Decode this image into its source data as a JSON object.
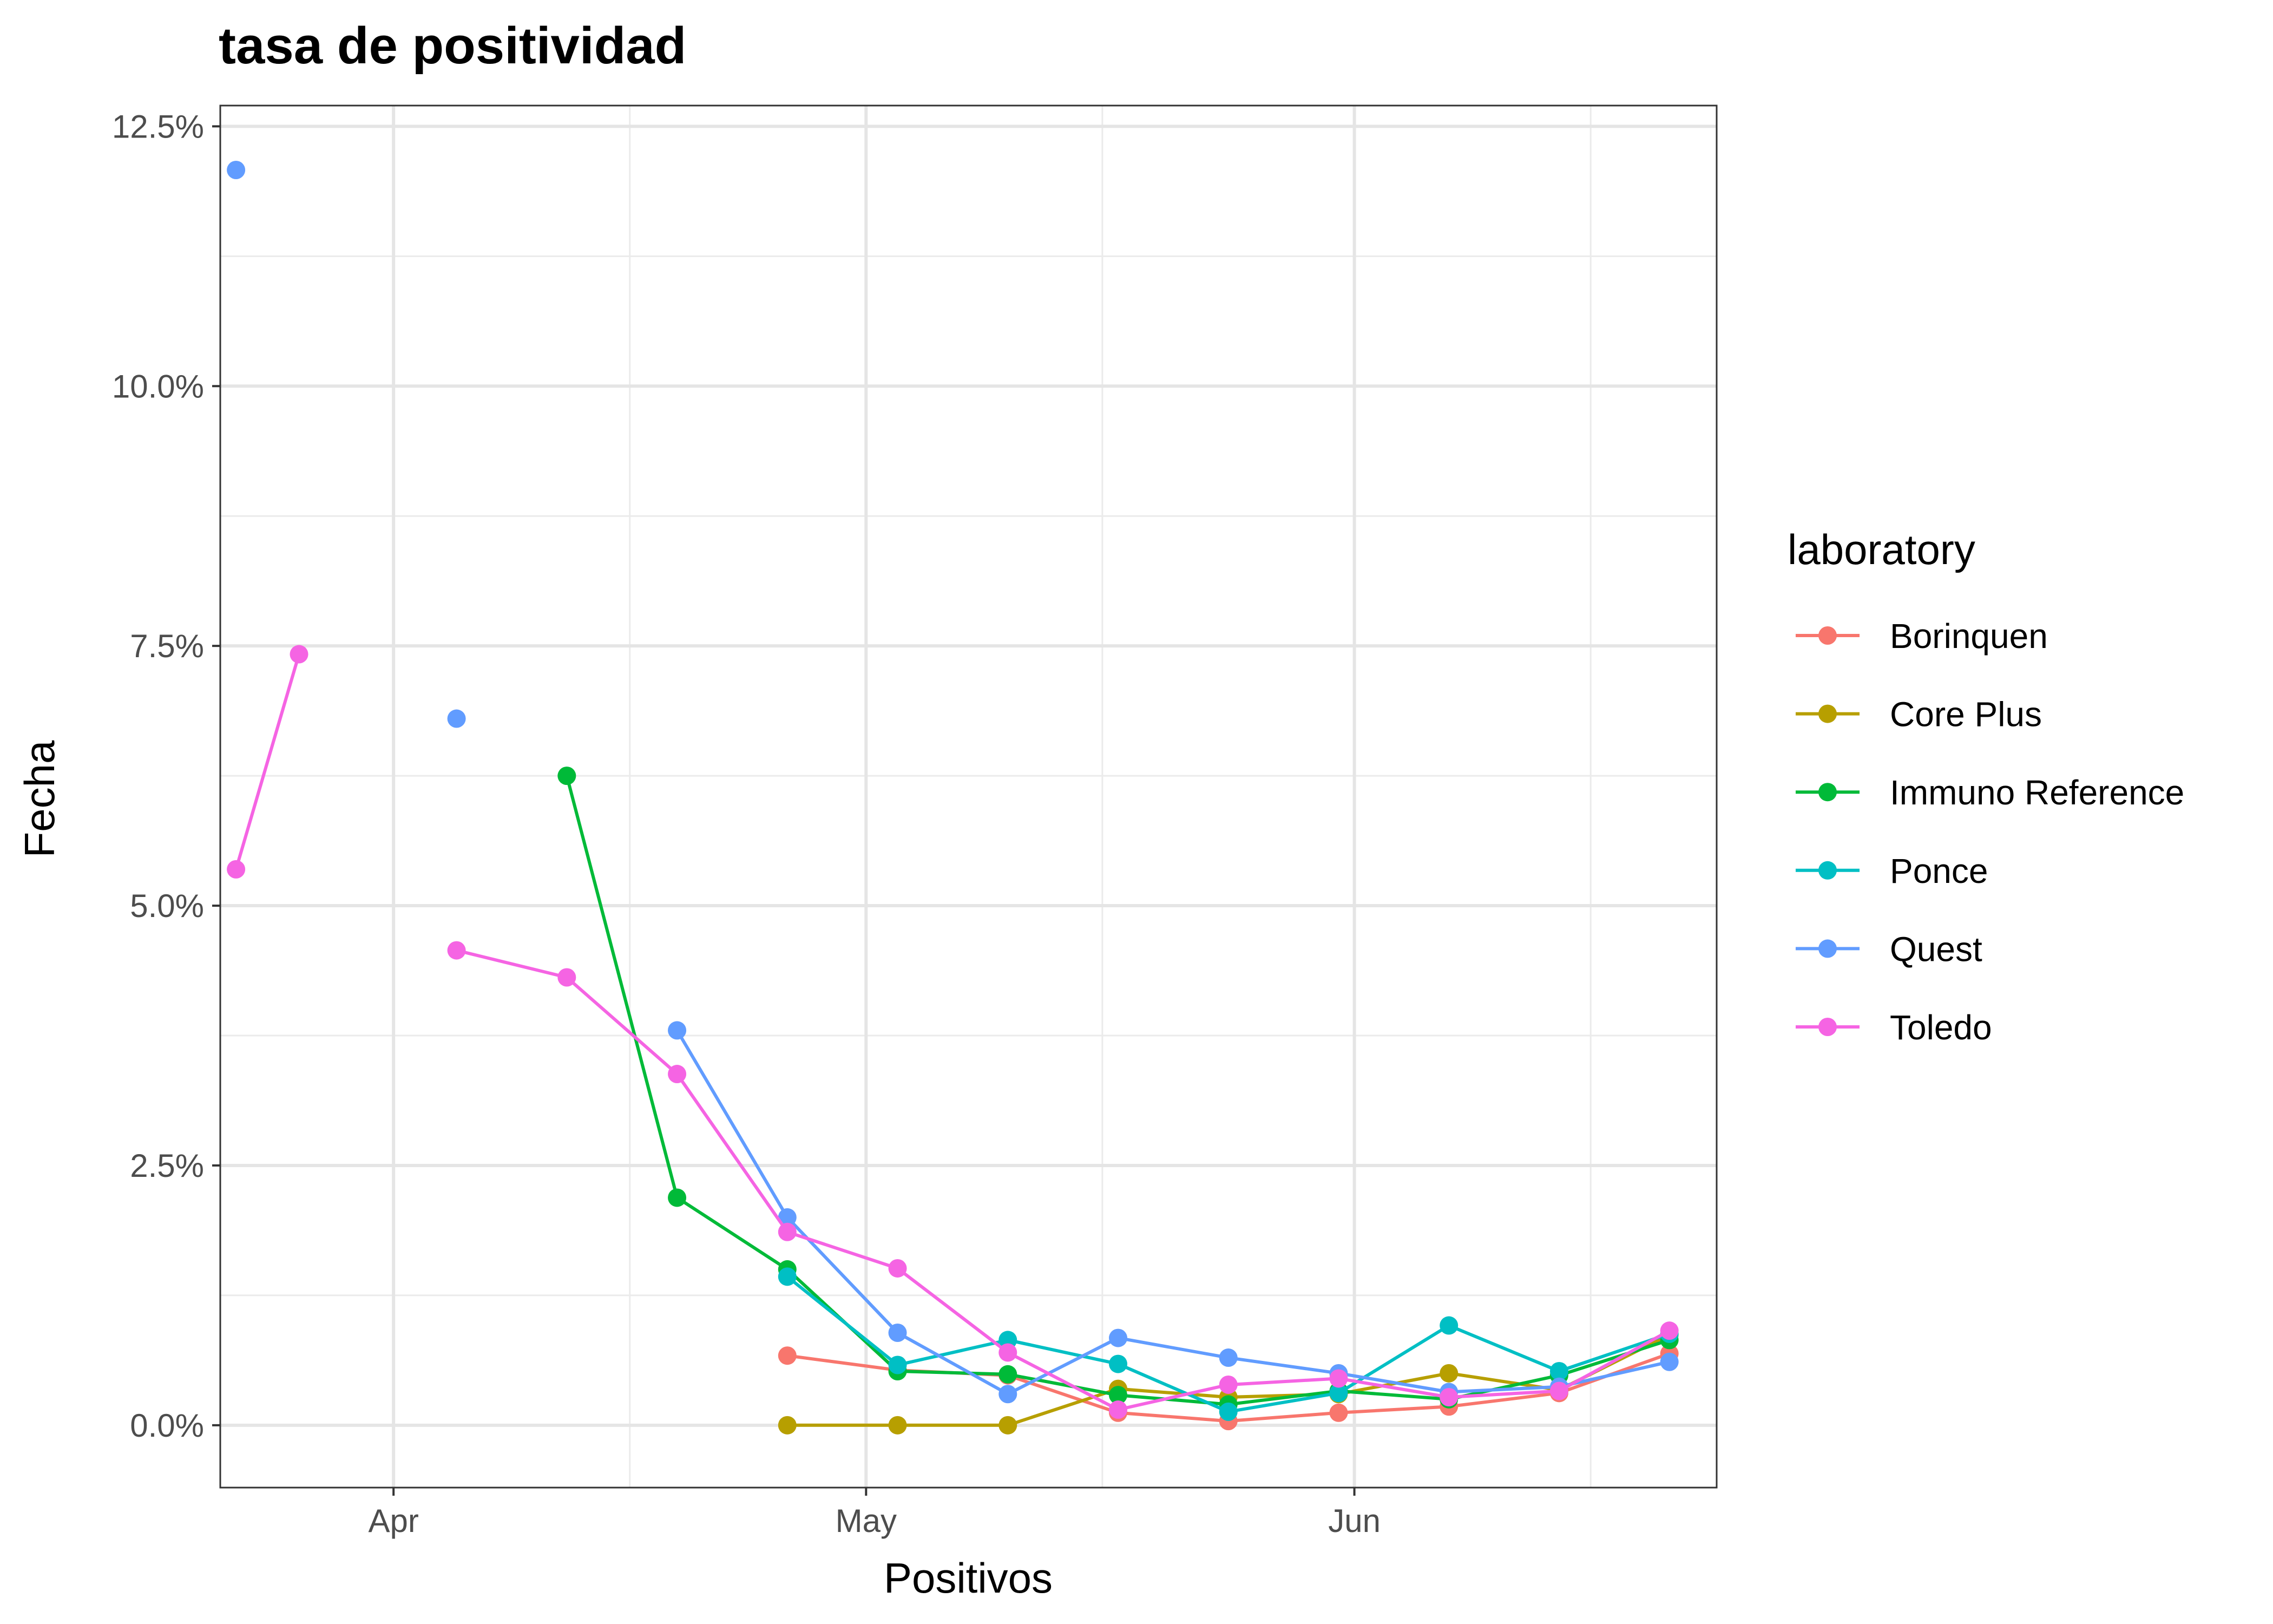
{
  "chart_data": {
    "type": "line",
    "title": "tasa de positividad",
    "xlabel": "Positivos",
    "ylabel": "Fecha",
    "x_ticks": [
      "Apr",
      "May",
      "Jun"
    ],
    "y_ticks": [
      "0.0%",
      "2.5%",
      "5.0%",
      "7.5%",
      "10.0%",
      "12.5%"
    ],
    "xlim": [
      "2020-03-21",
      "2020-06-24"
    ],
    "ylim": [
      -0.6,
      12.7
    ],
    "grid": true,
    "legend": {
      "title": "laboratory",
      "position": "right"
    },
    "series": [
      {
        "name": "Borinquen",
        "color": "#F8766D",
        "points": [
          [
            "2020-04-26",
            0.67
          ],
          [
            "2020-05-03",
            0.53
          ],
          [
            "2020-05-10",
            0.48
          ],
          [
            "2020-05-17",
            0.12
          ],
          [
            "2020-05-24",
            0.04
          ],
          [
            "2020-05-31",
            0.12
          ],
          [
            "2020-06-07",
            0.18
          ],
          [
            "2020-06-14",
            0.31
          ],
          [
            "2020-06-21",
            0.69
          ]
        ]
      },
      {
        "name": "Core Plus",
        "color": "#B79F00",
        "points": [
          [
            "2020-04-26",
            0.0
          ],
          [
            "2020-05-03",
            0.0
          ],
          [
            "2020-05-10",
            0.0
          ],
          [
            "2020-05-17",
            0.35
          ],
          [
            "2020-05-24",
            0.27
          ],
          [
            "2020-05-31",
            0.3
          ],
          [
            "2020-06-07",
            0.5
          ],
          [
            "2020-06-14",
            0.34
          ],
          [
            "2020-06-21",
            0.87
          ]
        ]
      },
      {
        "name": "Immuno Reference",
        "color": "#00BA38",
        "points": [
          [
            "2020-04-12",
            6.25
          ],
          [
            "2020-04-19",
            2.19
          ],
          [
            "2020-04-26",
            1.5
          ],
          [
            "2020-05-03",
            0.52
          ],
          [
            "2020-05-10",
            0.49
          ],
          [
            "2020-05-17",
            0.29
          ],
          [
            "2020-05-24",
            0.2
          ],
          [
            "2020-05-31",
            0.33
          ],
          [
            "2020-06-07",
            0.25
          ],
          [
            "2020-06-14",
            0.48
          ],
          [
            "2020-06-21",
            0.82
          ]
        ]
      },
      {
        "name": "Ponce",
        "color": "#00BFC4",
        "points": [
          [
            "2020-04-26",
            1.43
          ],
          [
            "2020-05-03",
            0.58
          ],
          [
            "2020-05-10",
            0.82
          ],
          [
            "2020-05-17",
            0.59
          ],
          [
            "2020-05-24",
            0.13
          ],
          [
            "2020-05-31",
            0.31
          ],
          [
            "2020-06-07",
            0.96
          ],
          [
            "2020-06-14",
            0.52
          ],
          [
            "2020-06-21",
            0.88
          ]
        ]
      },
      {
        "name": "Quest",
        "color": "#619CFF",
        "points": [
          [
            "2020-03-22",
            12.08
          ],
          null,
          [
            "2020-04-05",
            6.8
          ],
          null,
          [
            "2020-04-19",
            3.8
          ],
          [
            "2020-04-26",
            2.0
          ],
          [
            "2020-05-03",
            0.89
          ],
          [
            "2020-05-10",
            0.3
          ],
          [
            "2020-05-17",
            0.84
          ],
          [
            "2020-05-24",
            0.65
          ],
          [
            "2020-05-31",
            0.5
          ],
          [
            "2020-06-07",
            0.32
          ],
          [
            "2020-06-14",
            0.37
          ],
          [
            "2020-06-21",
            0.61
          ]
        ]
      },
      {
        "name": "Toledo",
        "color": "#F564E3",
        "points": [
          [
            "2020-03-22",
            5.35
          ],
          [
            "2020-03-26",
            7.42
          ],
          [
            "2020-04-05",
            4.57
          ],
          [
            "2020-04-12",
            4.31
          ],
          [
            "2020-04-19",
            3.38
          ],
          [
            "2020-04-26",
            1.86
          ],
          [
            "2020-05-03",
            1.51
          ],
          [
            "2020-05-10",
            0.7
          ],
          [
            "2020-05-17",
            0.15
          ],
          [
            "2020-05-24",
            0.39
          ],
          [
            "2020-05-31",
            0.45
          ],
          [
            "2020-06-07",
            0.27
          ],
          [
            "2020-06-14",
            0.33
          ],
          [
            "2020-06-21",
            0.91
          ]
        ]
      }
    ]
  }
}
